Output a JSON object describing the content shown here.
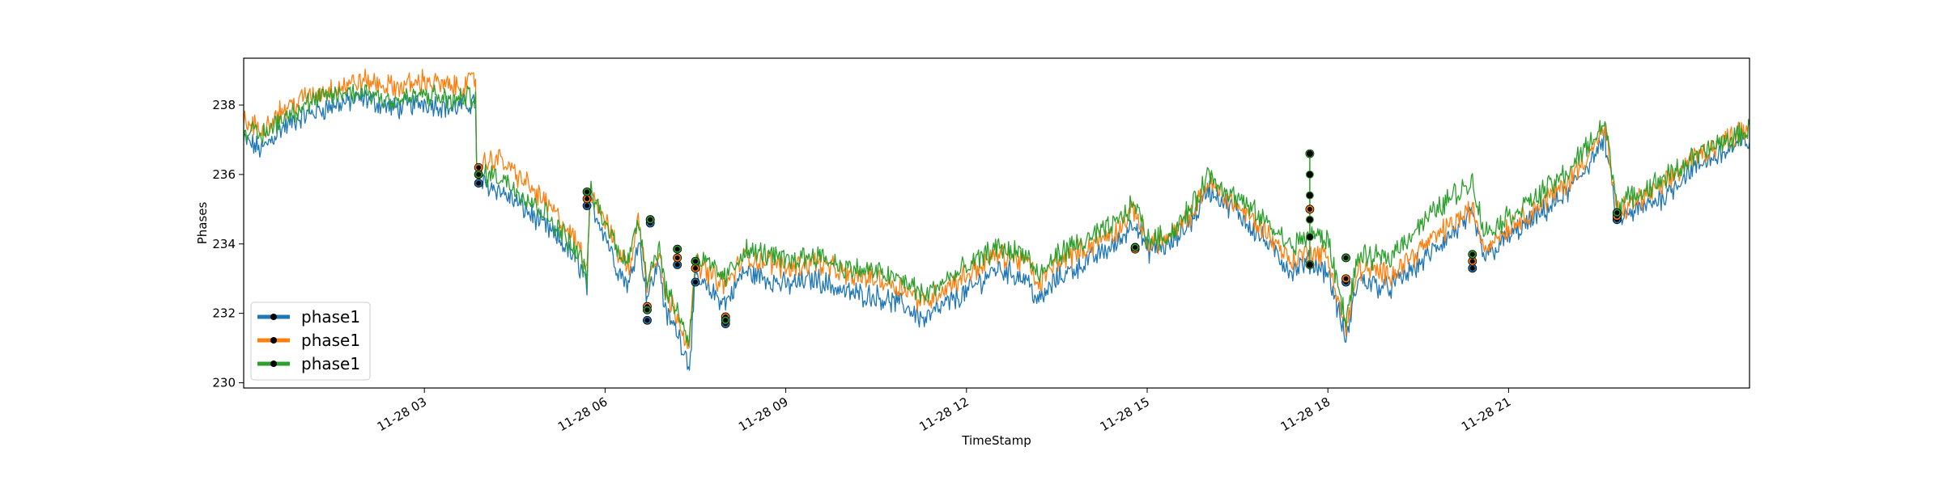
{
  "chart_data": {
    "type": "line",
    "title": "",
    "xlabel": "TimeStamp",
    "ylabel": "Phases",
    "xlim": [
      "11-28 00:00",
      "11-28 24:00"
    ],
    "ylim": [
      229.85,
      239.35
    ],
    "x_ticks": [
      {
        "hour": 3,
        "label": "11-28 03"
      },
      {
        "hour": 6,
        "label": "11-28 06"
      },
      {
        "hour": 9,
        "label": "11-28 09"
      },
      {
        "hour": 12,
        "label": "11-28 12"
      },
      {
        "hour": 15,
        "label": "11-28 15"
      },
      {
        "hour": 18,
        "label": "11-28 18"
      },
      {
        "hour": 21,
        "label": "11-28 21"
      }
    ],
    "y_ticks": [
      230,
      232,
      234,
      236,
      238
    ],
    "grid": false,
    "legend_position": "lower-left",
    "series": [
      {
        "name": "phase1",
        "color": "#1f77b4",
        "points": [
          [
            0.0,
            237.0
          ],
          [
            0.3,
            236.7
          ],
          [
            0.6,
            237.3
          ],
          [
            1.0,
            237.7
          ],
          [
            1.5,
            238.0
          ],
          [
            2.0,
            238.2
          ],
          [
            2.5,
            237.9
          ],
          [
            3.0,
            238.1
          ],
          [
            3.5,
            237.9
          ],
          [
            3.85,
            238.1
          ],
          [
            3.87,
            235.8
          ],
          [
            4.2,
            235.6
          ],
          [
            4.6,
            235.1
          ],
          [
            5.0,
            234.5
          ],
          [
            5.3,
            234.0
          ],
          [
            5.6,
            233.3
          ],
          [
            5.7,
            232.8
          ],
          [
            5.75,
            235.2
          ],
          [
            6.0,
            234.3
          ],
          [
            6.2,
            233.3
          ],
          [
            6.4,
            232.8
          ],
          [
            6.55,
            234.2
          ],
          [
            6.7,
            232.5
          ],
          [
            6.9,
            233.5
          ],
          [
            7.0,
            232.0
          ],
          [
            7.2,
            231.5
          ],
          [
            7.4,
            230.5
          ],
          [
            7.5,
            233.0
          ],
          [
            7.7,
            232.7
          ],
          [
            8.0,
            232.3
          ],
          [
            8.3,
            233.2
          ],
          [
            8.7,
            233.0
          ],
          [
            9.0,
            232.8
          ],
          [
            9.5,
            233.0
          ],
          [
            10.0,
            232.6
          ],
          [
            10.5,
            232.5
          ],
          [
            11.0,
            232.2
          ],
          [
            11.3,
            231.8
          ],
          [
            11.6,
            232.2
          ],
          [
            12.0,
            232.6
          ],
          [
            12.5,
            233.3
          ],
          [
            13.0,
            233.0
          ],
          [
            13.2,
            232.3
          ],
          [
            13.5,
            233.0
          ],
          [
            14.0,
            233.5
          ],
          [
            14.5,
            234.0
          ],
          [
            14.8,
            234.7
          ],
          [
            15.0,
            233.8
          ],
          [
            15.4,
            234.0
          ],
          [
            15.8,
            234.8
          ],
          [
            16.0,
            235.6
          ],
          [
            16.5,
            234.9
          ],
          [
            17.0,
            234.0
          ],
          [
            17.4,
            233.2
          ],
          [
            17.7,
            233.5
          ],
          [
            18.0,
            233.2
          ],
          [
            18.3,
            231.2
          ],
          [
            18.5,
            233.0
          ],
          [
            19.0,
            232.7
          ],
          [
            19.5,
            233.4
          ],
          [
            20.0,
            234.2
          ],
          [
            20.4,
            234.8
          ],
          [
            20.6,
            233.6
          ],
          [
            21.0,
            234.2
          ],
          [
            21.5,
            234.8
          ],
          [
            22.0,
            235.5
          ],
          [
            22.6,
            237.0
          ],
          [
            22.8,
            234.7
          ],
          [
            23.2,
            235.0
          ],
          [
            23.6,
            235.4
          ],
          [
            24.0,
            236.1
          ],
          [
            24.4,
            236.5
          ],
          [
            24.8,
            236.8
          ],
          [
            24.9,
            236.9
          ],
          [
            25.0,
            237.0
          ]
        ],
        "markers": [
          [
            3.9,
            235.75
          ],
          [
            5.7,
            235.1
          ],
          [
            6.7,
            231.8
          ],
          [
            6.75,
            234.6
          ],
          [
            7.2,
            233.4
          ],
          [
            7.5,
            232.9
          ],
          [
            8.0,
            231.7
          ],
          [
            14.8,
            233.9
          ],
          [
            17.7,
            233.4
          ],
          [
            18.3,
            232.9
          ],
          [
            20.4,
            233.3
          ],
          [
            22.8,
            234.7
          ]
        ]
      },
      {
        "name": "phase1",
        "color": "#ff7f0e",
        "points": [
          [
            0.0,
            237.5
          ],
          [
            0.3,
            237.3
          ],
          [
            0.6,
            237.8
          ],
          [
            1.0,
            238.2
          ],
          [
            1.5,
            238.5
          ],
          [
            2.0,
            238.7
          ],
          [
            2.5,
            238.5
          ],
          [
            3.0,
            238.7
          ],
          [
            3.5,
            238.5
          ],
          [
            3.85,
            238.7
          ],
          [
            3.87,
            236.2
          ],
          [
            4.2,
            236.5
          ],
          [
            4.6,
            235.9
          ],
          [
            5.0,
            235.2
          ],
          [
            5.3,
            234.6
          ],
          [
            5.6,
            233.8
          ],
          [
            5.7,
            233.2
          ],
          [
            5.75,
            235.6
          ],
          [
            6.0,
            234.7
          ],
          [
            6.2,
            233.8
          ],
          [
            6.4,
            233.3
          ],
          [
            6.55,
            234.7
          ],
          [
            6.7,
            232.9
          ],
          [
            6.9,
            233.9
          ],
          [
            7.0,
            232.5
          ],
          [
            7.2,
            232.0
          ],
          [
            7.4,
            231.0
          ],
          [
            7.5,
            233.5
          ],
          [
            7.7,
            233.2
          ],
          [
            8.0,
            232.8
          ],
          [
            8.3,
            233.6
          ],
          [
            8.7,
            233.5
          ],
          [
            9.0,
            233.3
          ],
          [
            9.5,
            233.5
          ],
          [
            10.0,
            233.1
          ],
          [
            10.5,
            233.0
          ],
          [
            11.0,
            232.7
          ],
          [
            11.3,
            232.3
          ],
          [
            11.6,
            232.7
          ],
          [
            12.0,
            233.1
          ],
          [
            12.5,
            233.7
          ],
          [
            13.0,
            233.5
          ],
          [
            13.2,
            232.8
          ],
          [
            13.5,
            233.5
          ],
          [
            14.0,
            233.9
          ],
          [
            14.5,
            234.4
          ],
          [
            14.8,
            235.0
          ],
          [
            15.0,
            234.0
          ],
          [
            15.4,
            234.2
          ],
          [
            15.8,
            235.0
          ],
          [
            16.0,
            235.8
          ],
          [
            16.5,
            235.1
          ],
          [
            17.0,
            234.3
          ],
          [
            17.4,
            233.5
          ],
          [
            17.7,
            233.8
          ],
          [
            18.0,
            233.6
          ],
          [
            18.3,
            231.5
          ],
          [
            18.5,
            233.3
          ],
          [
            19.0,
            233.1
          ],
          [
            19.5,
            233.8
          ],
          [
            20.0,
            234.5
          ],
          [
            20.4,
            235.0
          ],
          [
            20.6,
            233.9
          ],
          [
            21.0,
            234.5
          ],
          [
            21.5,
            235.1
          ],
          [
            22.0,
            235.8
          ],
          [
            22.6,
            237.3
          ],
          [
            22.8,
            234.9
          ],
          [
            23.2,
            235.3
          ],
          [
            23.6,
            235.7
          ],
          [
            24.0,
            236.4
          ],
          [
            24.4,
            236.8
          ],
          [
            24.8,
            237.2
          ],
          [
            24.9,
            237.3
          ],
          [
            25.0,
            237.4
          ]
        ],
        "markers": [
          [
            3.9,
            236.2
          ],
          [
            5.7,
            235.3
          ],
          [
            6.7,
            232.2
          ],
          [
            6.75,
            234.7
          ],
          [
            7.2,
            233.6
          ],
          [
            7.5,
            233.3
          ],
          [
            8.0,
            231.9
          ],
          [
            14.8,
            233.85
          ],
          [
            17.7,
            235.0
          ],
          [
            18.3,
            233.0
          ],
          [
            20.4,
            233.5
          ],
          [
            22.8,
            234.8
          ]
        ]
      },
      {
        "name": "phase1",
        "color": "#2ca02c",
        "points": [
          [
            0.0,
            237.3
          ],
          [
            0.3,
            237.1
          ],
          [
            0.6,
            237.6
          ],
          [
            1.0,
            238.0
          ],
          [
            1.5,
            238.3
          ],
          [
            2.0,
            238.4
          ],
          [
            2.5,
            238.1
          ],
          [
            3.0,
            238.3
          ],
          [
            3.5,
            238.1
          ],
          [
            3.85,
            238.3
          ],
          [
            3.87,
            236.0
          ],
          [
            4.2,
            236.0
          ],
          [
            4.6,
            235.5
          ],
          [
            5.0,
            234.9
          ],
          [
            5.3,
            234.3
          ],
          [
            5.6,
            233.6
          ],
          [
            5.7,
            233.0
          ],
          [
            5.75,
            235.5
          ],
          [
            6.0,
            234.6
          ],
          [
            6.2,
            233.9
          ],
          [
            6.4,
            233.5
          ],
          [
            6.55,
            234.8
          ],
          [
            6.7,
            233.0
          ],
          [
            6.9,
            234.0
          ],
          [
            7.0,
            232.7
          ],
          [
            7.2,
            232.1
          ],
          [
            7.4,
            231.2
          ],
          [
            7.5,
            233.6
          ],
          [
            7.7,
            233.4
          ],
          [
            8.0,
            233.0
          ],
          [
            8.3,
            233.8
          ],
          [
            8.7,
            233.7
          ],
          [
            9.0,
            233.5
          ],
          [
            9.5,
            233.7
          ],
          [
            10.0,
            233.3
          ],
          [
            10.5,
            233.2
          ],
          [
            11.0,
            232.9
          ],
          [
            11.3,
            232.5
          ],
          [
            11.6,
            232.9
          ],
          [
            12.0,
            233.3
          ],
          [
            12.5,
            233.9
          ],
          [
            13.0,
            233.7
          ],
          [
            13.2,
            233.0
          ],
          [
            13.5,
            233.7
          ],
          [
            14.0,
            234.1
          ],
          [
            14.5,
            234.6
          ],
          [
            14.8,
            235.2
          ],
          [
            15.0,
            234.1
          ],
          [
            15.4,
            234.3
          ],
          [
            15.8,
            235.2
          ],
          [
            16.0,
            236.0
          ],
          [
            16.5,
            235.3
          ],
          [
            17.0,
            234.6
          ],
          [
            17.4,
            233.9
          ],
          [
            17.7,
            234.3
          ],
          [
            18.0,
            234.1
          ],
          [
            18.3,
            231.8
          ],
          [
            18.5,
            233.6
          ],
          [
            19.0,
            233.6
          ],
          [
            19.5,
            234.5
          ],
          [
            20.0,
            235.3
          ],
          [
            20.4,
            235.8
          ],
          [
            20.6,
            234.3
          ],
          [
            21.0,
            234.8
          ],
          [
            21.5,
            235.4
          ],
          [
            22.0,
            236.1
          ],
          [
            22.6,
            237.5
          ],
          [
            22.8,
            235.1
          ],
          [
            23.2,
            235.5
          ],
          [
            23.6,
            235.9
          ],
          [
            24.0,
            236.4
          ],
          [
            24.4,
            236.8
          ],
          [
            24.8,
            237.1
          ],
          [
            24.9,
            237.2
          ],
          [
            25.0,
            237.3
          ]
        ],
        "markers": [
          [
            3.9,
            236.0
          ],
          [
            5.7,
            235.5
          ],
          [
            6.7,
            232.1
          ],
          [
            6.75,
            234.7
          ],
          [
            7.2,
            233.85
          ],
          [
            7.5,
            233.5
          ],
          [
            8.0,
            231.8
          ],
          [
            14.8,
            233.9
          ],
          [
            17.7,
            236.6
          ],
          [
            18.3,
            233.6
          ],
          [
            20.4,
            233.7
          ],
          [
            22.8,
            234.9
          ]
        ]
      }
    ],
    "spikes": [
      {
        "hour": 17.7,
        "values": [
          233.4,
          234.2,
          234.7,
          235.4,
          236.0,
          236.6
        ]
      }
    ]
  }
}
